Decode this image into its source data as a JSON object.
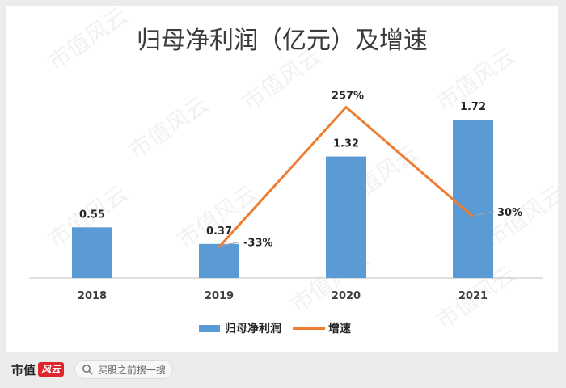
{
  "chart_data": {
    "type": "bar",
    "title": "归母净利润（亿元）及增速",
    "categories": [
      "2018",
      "2019",
      "2020",
      "2021"
    ],
    "series": [
      {
        "name": "归母净利润",
        "type": "bar",
        "color": "#5b9bd5",
        "values": [
          0.55,
          0.37,
          1.32,
          1.72
        ],
        "labels": [
          "0.55",
          "0.37",
          "1.32",
          "1.72"
        ]
      },
      {
        "name": "增速",
        "type": "line",
        "color": "#ed7d31",
        "values": [
          null,
          -33,
          257,
          30
        ],
        "labels": [
          null,
          "-33%",
          "257%",
          "30%"
        ],
        "unit": "%"
      }
    ],
    "legend_position": "bottom",
    "grid": false
  },
  "watermark": "市值风云",
  "footer": {
    "brand": "市值",
    "brand_mark": "风云",
    "search_placeholder": "买股之前搜一搜",
    "search_icon": "search-icon"
  }
}
